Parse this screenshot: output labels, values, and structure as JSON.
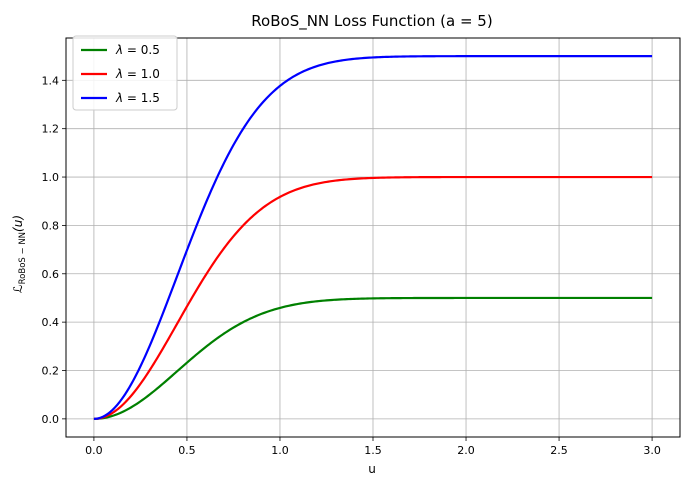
{
  "chart_data": {
    "type": "line",
    "title": "RoBoS_NN Loss Function (a = 5)",
    "xlabel": "u",
    "ylabel": {
      "symbol": "ℒ",
      "subscript": "RoBoS − NN",
      "suffix": "(u)"
    },
    "xlim": [
      -0.15,
      3.15
    ],
    "ylim": [
      -0.075,
      1.575
    ],
    "xticks": [
      0.0,
      0.5,
      1.0,
      1.5,
      2.0,
      2.5,
      3.0
    ],
    "xtick_labels": [
      "0.0",
      "0.5",
      "1.0",
      "1.5",
      "2.0",
      "2.5",
      "3.0"
    ],
    "yticks": [
      0.0,
      0.2,
      0.4,
      0.6,
      0.8,
      1.0,
      1.2,
      1.4
    ],
    "ytick_labels": [
      "0.0",
      "0.2",
      "0.4",
      "0.6",
      "0.8",
      "1.0",
      "1.2",
      "1.4"
    ],
    "grid": true,
    "legend_position": "top-left",
    "a": 5,
    "series": [
      {
        "name": "λ = 0.5",
        "legend_symbol": "λ",
        "legend_value": " = 0.5",
        "color": "#008000",
        "lambda": 0.5,
        "x": [
          0.0,
          0.1,
          0.2,
          0.3,
          0.4,
          0.5,
          0.6,
          0.7,
          0.8,
          0.9,
          1.0,
          1.2,
          1.4,
          1.6,
          2.0,
          2.5,
          3.0
        ],
        "y": [
          0.0,
          0.024,
          0.082,
          0.152,
          0.221,
          0.282,
          0.331,
          0.37,
          0.399,
          0.421,
          0.438,
          0.462,
          0.477,
          0.486,
          0.496,
          0.499,
          0.5
        ]
      },
      {
        "name": "λ = 1.0",
        "legend_symbol": "λ",
        "legend_value": " = 1.0",
        "color": "#ff0000",
        "lambda": 1.0,
        "x": [
          0.0,
          0.1,
          0.2,
          0.3,
          0.4,
          0.5,
          0.6,
          0.7,
          0.8,
          0.9,
          1.0,
          1.2,
          1.4,
          1.6,
          2.0,
          2.5,
          3.0
        ],
        "y": [
          0.0,
          0.048,
          0.164,
          0.304,
          0.442,
          0.564,
          0.662,
          0.74,
          0.798,
          0.842,
          0.876,
          0.924,
          0.954,
          0.972,
          0.992,
          0.998,
          1.0
        ]
      },
      {
        "name": "λ = 1.5",
        "legend_symbol": "λ",
        "legend_value": " = 1.5",
        "color": "#0000ff",
        "lambda": 1.5,
        "x": [
          0.0,
          0.1,
          0.2,
          0.3,
          0.4,
          0.5,
          0.6,
          0.7,
          0.8,
          0.9,
          1.0,
          1.2,
          1.4,
          1.6,
          2.0,
          2.5,
          3.0
        ],
        "y": [
          0.0,
          0.072,
          0.246,
          0.456,
          0.663,
          0.846,
          0.993,
          1.11,
          1.197,
          1.263,
          1.314,
          1.386,
          1.431,
          1.458,
          1.488,
          1.497,
          1.5
        ]
      }
    ]
  }
}
